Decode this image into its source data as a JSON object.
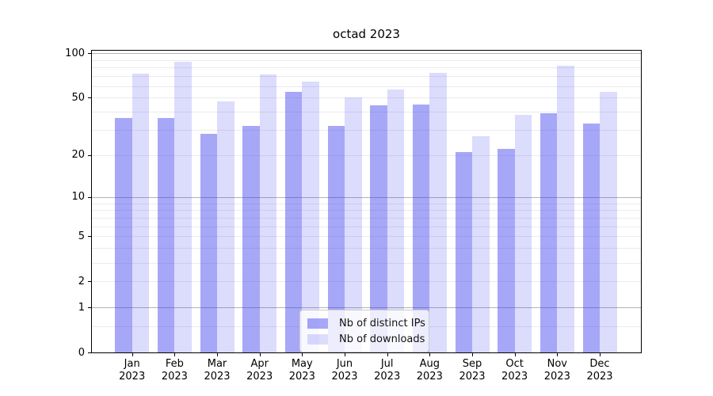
{
  "chart_data": {
    "type": "bar",
    "title": "octad 2023",
    "categories": [
      "Jan",
      "Feb",
      "Mar",
      "Apr",
      "May",
      "Jun",
      "Jul",
      "Aug",
      "Sep",
      "Oct",
      "Nov",
      "Dec"
    ],
    "category_year": "2023",
    "series": [
      {
        "name": "Nb of distinct IPs",
        "color": "rgba(60,60,240,0.45)",
        "values": [
          36,
          36,
          28,
          32,
          55,
          32,
          44,
          45,
          21,
          22,
          39,
          33
        ]
      },
      {
        "name": "Nb of downloads",
        "color": "rgba(60,60,240,0.18)",
        "values": [
          73,
          88,
          47,
          72,
          64,
          50,
          57,
          74,
          27,
          38,
          82,
          55
        ]
      }
    ],
    "yscale": "log1p",
    "ylim": [
      0,
      104
    ],
    "yticks": [
      0,
      1,
      2,
      5,
      10,
      20,
      50,
      100
    ],
    "yticks_minor": [
      0.5,
      3,
      4,
      6,
      7,
      8,
      9,
      30,
      40,
      60,
      70,
      80,
      90
    ],
    "grid": {
      "major_color": "#b3b3b3",
      "minor_color": "#eceaf0"
    },
    "legend": {
      "position": "lower-center"
    }
  }
}
